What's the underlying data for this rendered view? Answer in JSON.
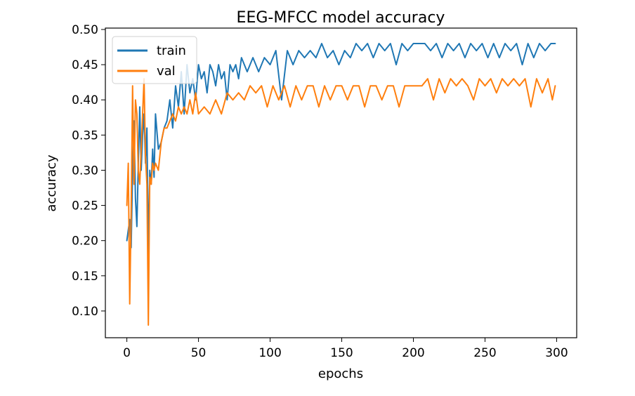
{
  "chart_data": {
    "type": "line",
    "title": "EEG-MFCC model accuracy",
    "xlabel": "epochs",
    "ylabel": "accuracy",
    "xlim": [
      -15,
      314
    ],
    "ylim": [
      0.062,
      0.502
    ],
    "x_ticks": [
      0,
      50,
      100,
      150,
      200,
      250,
      300
    ],
    "y_ticks": [
      0.1,
      0.15,
      0.2,
      0.25,
      0.3,
      0.35,
      0.4,
      0.45,
      0.5
    ],
    "grid": false,
    "legend": {
      "position": "top-left"
    },
    "series": [
      {
        "name": "train",
        "color": "#1f77b4",
        "x": [
          0,
          2,
          3,
          4,
          5,
          6,
          7,
          8,
          9,
          10,
          11,
          12,
          13,
          14,
          15,
          16,
          17,
          18,
          19,
          20,
          22,
          24,
          26,
          28,
          30,
          32,
          34,
          36,
          38,
          40,
          42,
          44,
          46,
          48,
          50,
          52,
          54,
          56,
          58,
          60,
          62,
          64,
          66,
          68,
          70,
          72,
          74,
          76,
          78,
          80,
          84,
          88,
          92,
          96,
          100,
          104,
          108,
          112,
          116,
          120,
          124,
          128,
          132,
          136,
          140,
          144,
          148,
          152,
          156,
          160,
          164,
          168,
          172,
          176,
          180,
          184,
          188,
          192,
          196,
          200,
          204,
          208,
          212,
          216,
          220,
          224,
          228,
          232,
          236,
          240,
          244,
          248,
          252,
          256,
          260,
          264,
          268,
          272,
          276,
          280,
          284,
          288,
          292,
          296,
          299
        ],
        "y": [
          0.2,
          0.23,
          0.19,
          0.3,
          0.37,
          0.26,
          0.22,
          0.31,
          0.39,
          0.3,
          0.35,
          0.38,
          0.31,
          0.36,
          0.18,
          0.3,
          0.28,
          0.33,
          0.29,
          0.38,
          0.33,
          0.34,
          0.36,
          0.37,
          0.4,
          0.36,
          0.42,
          0.39,
          0.44,
          0.38,
          0.45,
          0.41,
          0.43,
          0.4,
          0.45,
          0.43,
          0.44,
          0.41,
          0.45,
          0.44,
          0.42,
          0.45,
          0.43,
          0.44,
          0.4,
          0.45,
          0.44,
          0.45,
          0.43,
          0.46,
          0.44,
          0.46,
          0.44,
          0.46,
          0.45,
          0.47,
          0.4,
          0.47,
          0.45,
          0.47,
          0.46,
          0.47,
          0.46,
          0.48,
          0.46,
          0.47,
          0.45,
          0.47,
          0.46,
          0.48,
          0.47,
          0.48,
          0.46,
          0.48,
          0.47,
          0.48,
          0.45,
          0.48,
          0.47,
          0.48,
          0.48,
          0.48,
          0.47,
          0.48,
          0.46,
          0.48,
          0.47,
          0.48,
          0.46,
          0.48,
          0.47,
          0.48,
          0.46,
          0.48,
          0.46,
          0.48,
          0.47,
          0.48,
          0.45,
          0.48,
          0.46,
          0.48,
          0.47,
          0.48,
          0.48
        ]
      },
      {
        "name": "val",
        "color": "#ff7f0e",
        "x": [
          0,
          1,
          2,
          3,
          4,
          5,
          6,
          7,
          8,
          9,
          10,
          11,
          12,
          13,
          14,
          15,
          16,
          17,
          18,
          19,
          20,
          22,
          24,
          26,
          28,
          30,
          32,
          34,
          36,
          38,
          40,
          42,
          44,
          46,
          48,
          50,
          54,
          58,
          62,
          66,
          70,
          74,
          78,
          82,
          86,
          90,
          94,
          98,
          102,
          106,
          110,
          114,
          118,
          122,
          126,
          130,
          134,
          138,
          142,
          146,
          150,
          154,
          158,
          162,
          166,
          170,
          174,
          178,
          182,
          186,
          190,
          194,
          198,
          202,
          206,
          210,
          214,
          218,
          222,
          226,
          230,
          234,
          238,
          242,
          246,
          250,
          254,
          258,
          262,
          266,
          270,
          274,
          278,
          282,
          286,
          290,
          294,
          297,
          299
        ],
        "y": [
          0.25,
          0.31,
          0.11,
          0.24,
          0.42,
          0.28,
          0.4,
          0.38,
          0.3,
          0.28,
          0.33,
          0.38,
          0.43,
          0.32,
          0.28,
          0.08,
          0.29,
          0.28,
          0.31,
          0.3,
          0.31,
          0.3,
          0.34,
          0.36,
          0.36,
          0.37,
          0.38,
          0.37,
          0.39,
          0.38,
          0.39,
          0.38,
          0.4,
          0.38,
          0.41,
          0.38,
          0.39,
          0.38,
          0.4,
          0.38,
          0.41,
          0.4,
          0.41,
          0.4,
          0.42,
          0.41,
          0.42,
          0.39,
          0.42,
          0.4,
          0.42,
          0.39,
          0.42,
          0.4,
          0.42,
          0.42,
          0.39,
          0.42,
          0.4,
          0.42,
          0.42,
          0.4,
          0.42,
          0.42,
          0.39,
          0.42,
          0.42,
          0.4,
          0.42,
          0.42,
          0.39,
          0.42,
          0.42,
          0.42,
          0.42,
          0.43,
          0.4,
          0.43,
          0.41,
          0.43,
          0.42,
          0.43,
          0.42,
          0.4,
          0.43,
          0.42,
          0.43,
          0.41,
          0.43,
          0.42,
          0.43,
          0.42,
          0.43,
          0.39,
          0.43,
          0.41,
          0.43,
          0.4,
          0.42
        ]
      }
    ]
  }
}
